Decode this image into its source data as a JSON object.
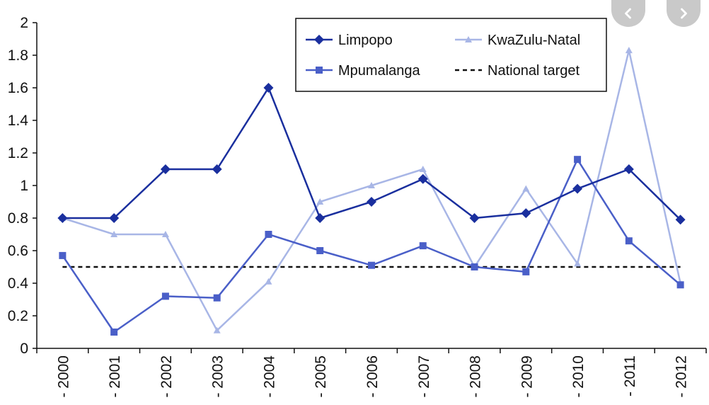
{
  "chart_data": {
    "type": "line",
    "categories": [
      "- 2000",
      "- 2001",
      "- 2002",
      "- 2003",
      "- 2004",
      "- 2005",
      "- 2006",
      "- 2007",
      "- 2008",
      "- 2009",
      "- 2010",
      "- 2011",
      "- 2012"
    ],
    "ylim": [
      0,
      2
    ],
    "yticks": [
      "0",
      "0.2",
      "0.4",
      "0.6",
      "0.8",
      "1",
      "1.2",
      "1.4",
      "1.6",
      "1.8",
      "2"
    ],
    "grid": false,
    "legend_position": "top-right",
    "series": [
      {
        "name": "Limpopo",
        "color": "#1a2f9e",
        "marker": "diamond",
        "style": "solid",
        "values": [
          0.8,
          0.8,
          1.1,
          1.1,
          1.6,
          0.8,
          0.9,
          1.04,
          0.8,
          0.83,
          0.98,
          1.1,
          0.79
        ]
      },
      {
        "name": "Mpumalanga",
        "color": "#4a5fc8",
        "marker": "square",
        "style": "solid",
        "values": [
          0.57,
          0.1,
          0.32,
          0.31,
          0.7,
          0.6,
          0.51,
          0.63,
          0.5,
          0.47,
          1.16,
          0.66,
          0.39
        ]
      },
      {
        "name": "KwaZulu-Natal",
        "color": "#a8b6e6",
        "marker": "triangle",
        "style": "solid",
        "values": [
          0.8,
          0.7,
          0.7,
          0.11,
          0.41,
          0.9,
          1.0,
          1.1,
          0.5,
          0.98,
          0.52,
          1.83,
          0.4
        ]
      },
      {
        "name": "National target",
        "color": "#111111",
        "marker": "none",
        "style": "dashed",
        "values": [
          0.5,
          0.5,
          0.5,
          0.5,
          0.5,
          0.5,
          0.5,
          0.5,
          0.5,
          0.5,
          0.5,
          0.5,
          0.5
        ]
      }
    ]
  },
  "nav": {
    "prev_icon": "chevron-left-icon",
    "next_icon": "chevron-right-icon"
  }
}
